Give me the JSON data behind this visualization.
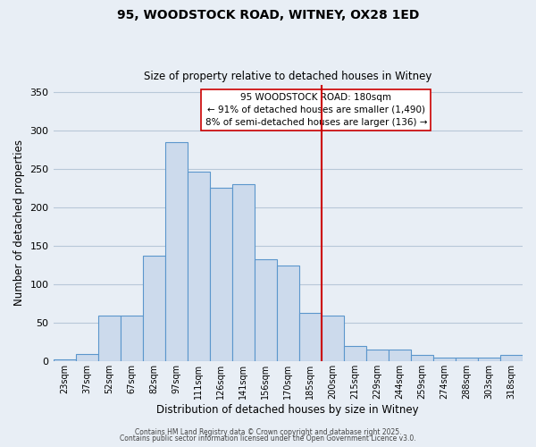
{
  "title": "95, WOODSTOCK ROAD, WITNEY, OX28 1ED",
  "subtitle": "Size of property relative to detached houses in Witney",
  "xlabel": "Distribution of detached houses by size in Witney",
  "ylabel": "Number of detached properties",
  "bar_labels": [
    "23sqm",
    "37sqm",
    "52sqm",
    "67sqm",
    "82sqm",
    "97sqm",
    "111sqm",
    "126sqm",
    "141sqm",
    "156sqm",
    "170sqm",
    "185sqm",
    "200sqm",
    "215sqm",
    "229sqm",
    "244sqm",
    "259sqm",
    "274sqm",
    "288sqm",
    "303sqm",
    "318sqm"
  ],
  "bar_values": [
    3,
    10,
    60,
    60,
    137,
    285,
    247,
    226,
    231,
    133,
    125,
    63,
    60,
    20,
    16,
    16,
    8,
    5,
    5,
    5,
    9
  ],
  "bar_color": "#ccdaec",
  "bar_edge_color": "#5b96cc",
  "ylim": [
    0,
    360
  ],
  "yticks": [
    0,
    50,
    100,
    150,
    200,
    250,
    300,
    350
  ],
  "vline_color": "#cc0000",
  "vline_x": 11.5,
  "annotation_title": "95 WOODSTOCK ROAD: 180sqm",
  "annotation_line1": "← 91% of detached houses are smaller (1,490)",
  "annotation_line2": "8% of semi-detached houses are larger (136) →",
  "footer1": "Contains HM Land Registry data © Crown copyright and database right 2025.",
  "footer2": "Contains public sector information licensed under the Open Government Licence v3.0.",
  "bg_color": "#e8eef5",
  "plot_bg_color": "#e8eef5",
  "grid_color": "#b8c8d8"
}
